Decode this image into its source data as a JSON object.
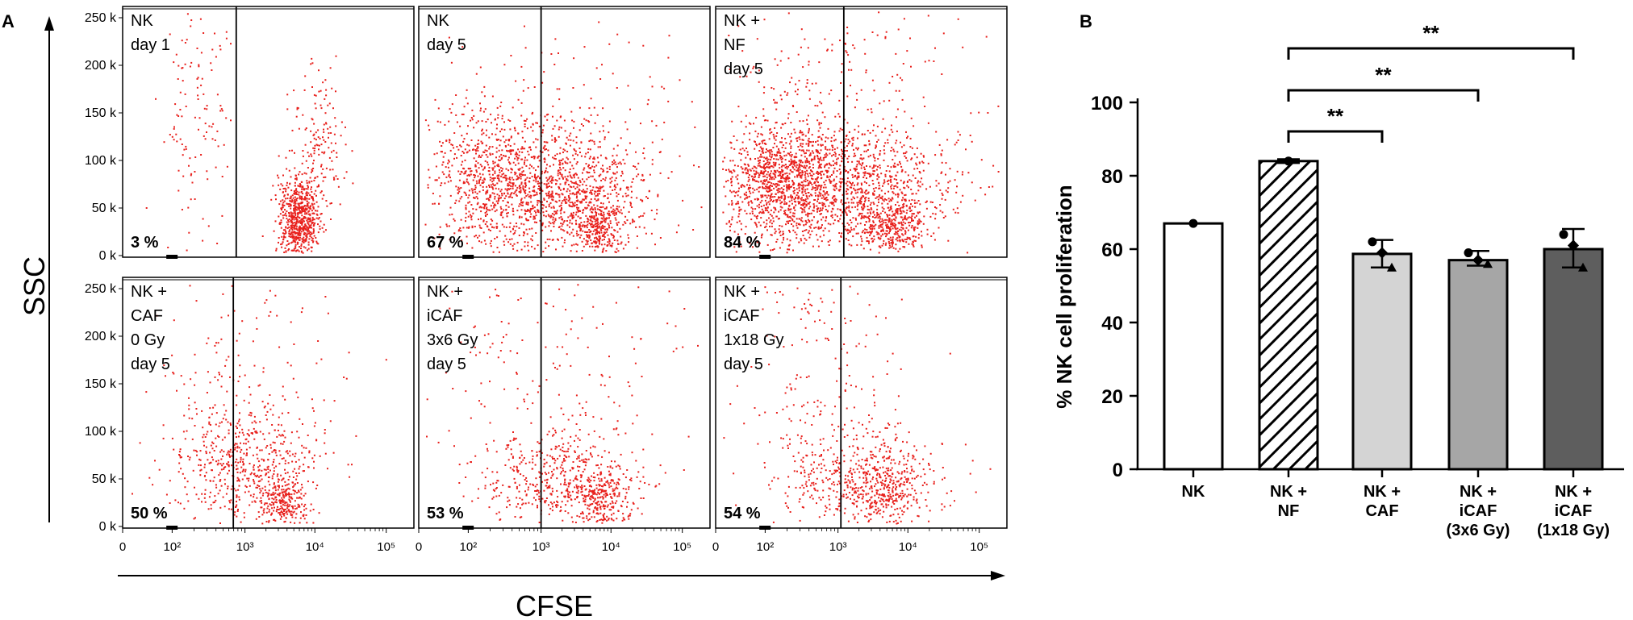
{
  "panel_a": {
    "letter": "A",
    "y_axis_label": "SSC",
    "x_axis_label": "CFSE",
    "y_tick_labels": [
      "250 k",
      "200 k",
      "150 k",
      "100 k",
      "50 k",
      "0 k"
    ],
    "x_tick_labels": [
      "0",
      "10²",
      "10³",
      "10⁴",
      "10⁵"
    ],
    "panels": [
      {
        "label_lines": [
          "NK",
          "day 1"
        ],
        "percent": "3 %"
      },
      {
        "label_lines": [
          "NK",
          "day 5"
        ],
        "percent": "67 %"
      },
      {
        "label_lines": [
          "NK +",
          "NF",
          "day 5"
        ],
        "percent": "84 %"
      },
      {
        "label_lines": [
          "NK +",
          "CAF",
          "0 Gy",
          "day 5"
        ],
        "percent": "50 %"
      },
      {
        "label_lines": [
          "NK +",
          "iCAF",
          "3x6 Gy",
          "day 5"
        ],
        "percent": "53 %"
      },
      {
        "label_lines": [
          "NK +",
          "iCAF",
          "1x18 Gy",
          "day 5"
        ],
        "percent": "54 %"
      }
    ]
  },
  "chart_data": {
    "type": "bar",
    "panel_letter": "B",
    "title": "",
    "xlabel": "",
    "ylabel": "% NK cell proliferation",
    "ylim": [
      0,
      100
    ],
    "y_ticks": [
      "0",
      "20",
      "40",
      "60",
      "80",
      "100"
    ],
    "categories": [
      {
        "lines": [
          "NK"
        ],
        "value": 67,
        "sd_low": 67,
        "sd_high": 67,
        "points": [
          67
        ],
        "fill": "#ffffff",
        "hatch": false
      },
      {
        "lines": [
          "NK +",
          "NF"
        ],
        "value": 84,
        "sd_low": 83.5,
        "sd_high": 84.5,
        "points": [
          84
        ],
        "fill": "#ffffff",
        "hatch": true
      },
      {
        "lines": [
          "NK +",
          "CAF"
        ],
        "value": 58.7,
        "sd_low": 55,
        "sd_high": 62.5,
        "points": [
          62,
          59,
          55
        ],
        "fill": "#d4d4d4",
        "hatch": false
      },
      {
        "lines": [
          "NK +",
          "iCAF",
          "(3x6 Gy)"
        ],
        "value": 57,
        "sd_low": 55.5,
        "sd_high": 59.5,
        "points": [
          59,
          57,
          56
        ],
        "fill": "#a6a6a6",
        "hatch": false
      },
      {
        "lines": [
          "NK +",
          "iCAF",
          "(1x18 Gy)"
        ],
        "value": 60,
        "sd_low": 55,
        "sd_high": 65.5,
        "points": [
          64,
          61,
          55
        ],
        "fill": "#5e5e5e",
        "hatch": false
      }
    ],
    "significance": [
      {
        "from": 1,
        "to": 2,
        "label": "**"
      },
      {
        "from": 1,
        "to": 3,
        "label": "**"
      },
      {
        "from": 1,
        "to": 4,
        "label": "**"
      }
    ]
  }
}
